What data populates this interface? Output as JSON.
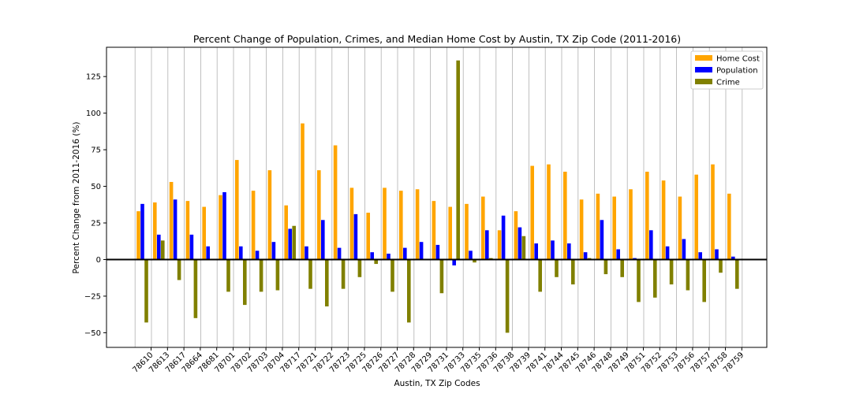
{
  "chart_data": {
    "type": "bar",
    "title": "Percent Change of Population, Crimes, and Median Home Cost by Austin, TX Zip Code (2011-2016)",
    "xlabel": "Austin, TX Zip Codes",
    "ylabel": "Percent Change from 2011-2016 (%)",
    "ylim": [
      -60,
      145
    ],
    "yticks": [
      -50,
      -25,
      0,
      25,
      50,
      75,
      100,
      125
    ],
    "grid": "vertical",
    "legend_position": "top-right",
    "categories": [
      "78610",
      "78613",
      "78617",
      "78664",
      "78681",
      "78701",
      "78702",
      "78703",
      "78704",
      "78717",
      "78721",
      "78722",
      "78723",
      "78725",
      "78726",
      "78727",
      "78728",
      "78729",
      "78731",
      "78733",
      "78735",
      "78736",
      "78738",
      "78739",
      "78741",
      "78744",
      "78745",
      "78746",
      "78748",
      "78749",
      "78751",
      "78752",
      "78753",
      "78756",
      "78757",
      "78758",
      "78759"
    ],
    "series": [
      {
        "name": "Home Cost",
        "color": "#ffa500",
        "values": [
          33,
          39,
          53,
          40,
          36,
          44,
          68,
          47,
          61,
          37,
          93,
          61,
          78,
          49,
          32,
          49,
          47,
          48,
          40,
          36,
          38,
          43,
          20,
          33,
          64,
          65,
          60,
          41,
          45,
          43,
          48,
          60,
          54,
          43,
          58,
          65,
          45
        ]
      },
      {
        "name": "Population",
        "color": "#0000ff",
        "values": [
          38,
          17,
          41,
          17,
          9,
          46,
          9,
          6,
          12,
          21,
          9,
          27,
          8,
          31,
          5,
          4,
          8,
          12,
          10,
          -4,
          6,
          20,
          30,
          22,
          11,
          13,
          11,
          5,
          27,
          7,
          1,
          20,
          9,
          14,
          5,
          7,
          2
        ]
      },
      {
        "name": "Crime",
        "color": "#808000",
        "values": [
          -43,
          13,
          -14,
          -40,
          0,
          -22,
          -31,
          -22,
          -21,
          23,
          -20,
          -32,
          -20,
          -12,
          -3,
          -22,
          -43,
          0,
          -23,
          136,
          -2,
          1,
          -50,
          16,
          -22,
          -12,
          -17,
          1,
          -10,
          -12,
          -29,
          -26,
          -17,
          -21,
          -29,
          -9,
          -20
        ]
      }
    ]
  }
}
